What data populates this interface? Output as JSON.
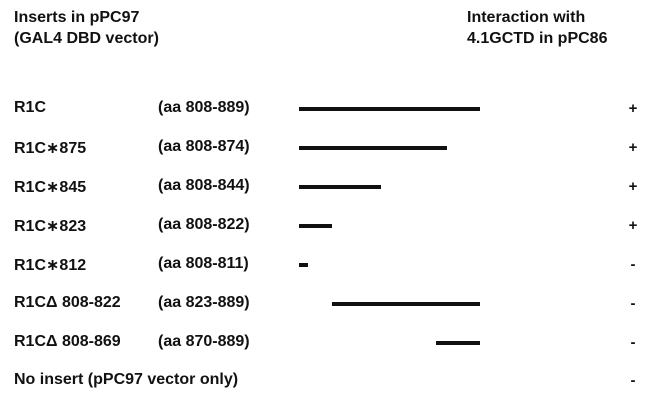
{
  "headers": {
    "left_line1": "Inserts in pPC97",
    "left_line2": "(GAL4 DBD vector)",
    "right_line1": "Interaction with",
    "right_line2": "4.1GCTD in pPC86"
  },
  "constructs": [
    {
      "name": "R1C",
      "range": "(aa 808-889)",
      "start": 808,
      "end": 889,
      "interaction": "+"
    },
    {
      "name": "R1C∗875",
      "range": "(aa 808-874)",
      "start": 808,
      "end": 874,
      "interaction": "+"
    },
    {
      "name": "R1C∗845",
      "range": "(aa 808-844)",
      "start": 808,
      "end": 844,
      "interaction": "+"
    },
    {
      "name": "R1C∗823",
      "range": "(aa 808-822)",
      "start": 808,
      "end": 822,
      "interaction": "+"
    },
    {
      "name": "R1C∗812",
      "range": "(aa 808-811)",
      "start": 808,
      "end": 811,
      "interaction": "-"
    },
    {
      "name": "R1CΔ 808-822",
      "range": "(aa 823-889)",
      "start": 823,
      "end": 889,
      "interaction": "-"
    },
    {
      "name": "R1CΔ 808-869",
      "range": "(aa 870-889)",
      "start": 870,
      "end": 889,
      "interaction": "-"
    }
  ],
  "footer": {
    "label": "No insert (pPC97 vector only)",
    "interaction": "-"
  }
}
